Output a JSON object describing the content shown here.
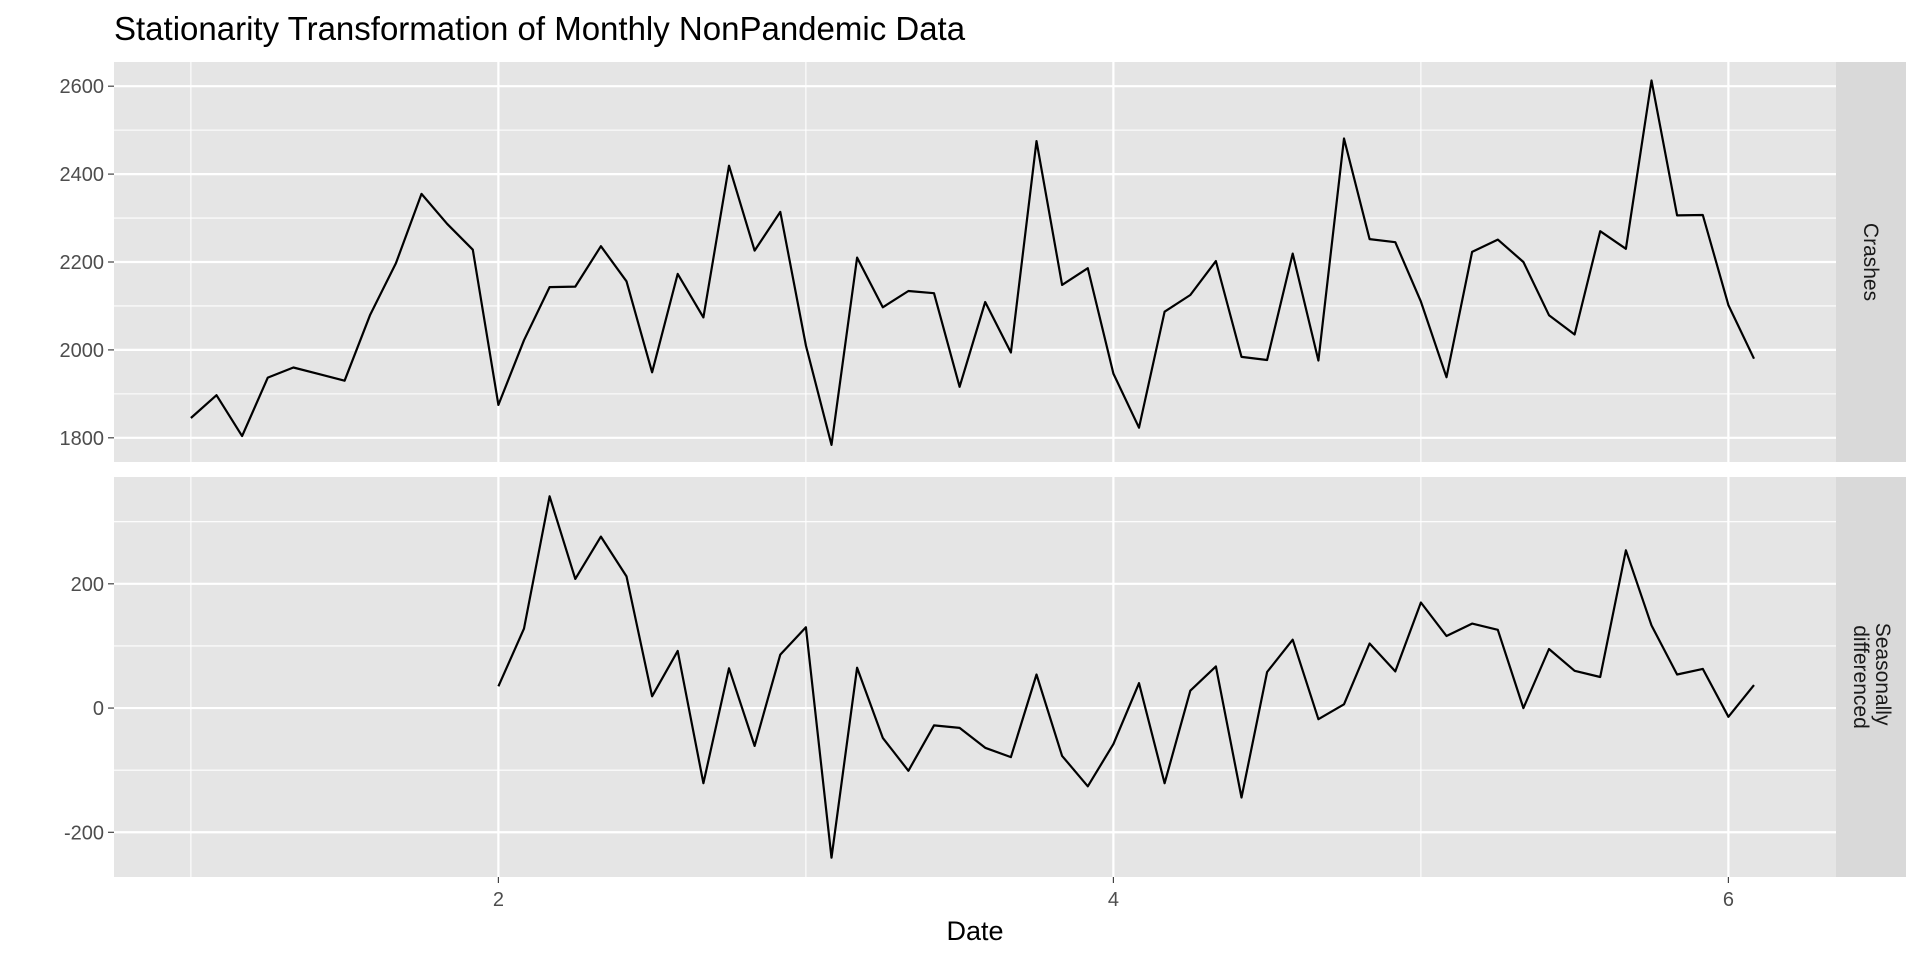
{
  "chart_data": {
    "type": "line",
    "title": "Stationarity Transformation of Monthly NonPandemic Data",
    "xlabel": "Date",
    "x_ticks": [
      "2",
      "4",
      "6"
    ],
    "x_tick_values": [
      2,
      4,
      6
    ],
    "xlim": [
      0.75,
      6.35
    ],
    "grid": true,
    "facets": [
      {
        "name": "Crashes",
        "strip_label_lines": [
          "Crashes"
        ],
        "ylim": [
          1745,
          2655
        ],
        "y_ticks": [
          1800,
          2000,
          2200,
          2400,
          2600
        ],
        "y_tick_labels": [
          "1800",
          "2000",
          "2200",
          "2400",
          "2600"
        ],
        "x": [
          1.0,
          1.0833,
          1.1667,
          1.25,
          1.3333,
          1.4167,
          1.5,
          1.5833,
          1.6667,
          1.75,
          1.8333,
          1.9167,
          2.0,
          2.0833,
          2.1667,
          2.25,
          2.3333,
          2.4167,
          2.5,
          2.5833,
          2.6667,
          2.75,
          2.8333,
          2.9167,
          3.0,
          3.0833,
          3.1667,
          3.25,
          3.3333,
          3.4167,
          3.5,
          3.5833,
          3.6667,
          3.75,
          3.8333,
          3.9167,
          4.0,
          4.0833,
          4.1667,
          4.25,
          4.3333,
          4.4167,
          4.5,
          4.5833,
          4.6667,
          4.75,
          4.8333,
          4.9167,
          5.0,
          5.0833,
          5.1667,
          5.25,
          5.3333,
          5.4167,
          5.5,
          5.5833,
          5.6667,
          5.75,
          5.8333,
          5.9167,
          6.0,
          6.0833
        ],
        "values": [
          1845,
          1897,
          1804,
          1937,
          1960,
          1945,
          1930,
          2080,
          2197,
          2355,
          2287,
          2228,
          1875,
          2022,
          2143,
          2144,
          2236,
          2156,
          1949,
          2173,
          2074,
          2419,
          2226,
          2314,
          2010,
          1784,
          2210,
          2097,
          2134,
          2129,
          1916,
          2109,
          1994,
          2475,
          2148,
          2186,
          1946,
          1823,
          2087,
          2125,
          2202,
          1984,
          1977,
          2219,
          1976,
          2481,
          2252,
          2245,
          2110,
          1938,
          2223,
          2251,
          2200,
          2079,
          2035,
          2270,
          2230,
          2613,
          2306,
          2307,
          2102,
          1980
        ]
      },
      {
        "name": "Seasonally differenced",
        "strip_label_lines": [
          "Seasonally",
          "differenced"
        ],
        "ylim": [
          -272,
          372
        ],
        "y_ticks": [
          -200,
          0,
          200
        ],
        "y_tick_labels": [
          "-200",
          "0",
          "200"
        ],
        "x": [
          2.0,
          2.0833,
          2.1667,
          2.25,
          2.3333,
          2.4167,
          2.5,
          2.5833,
          2.6667,
          2.75,
          2.8333,
          2.9167,
          3.0,
          3.0833,
          3.1667,
          3.25,
          3.3333,
          3.4167,
          3.5,
          3.5833,
          3.6667,
          3.75,
          3.8333,
          3.9167,
          4.0,
          4.0833,
          4.1667,
          4.25,
          4.3333,
          4.4167,
          4.5,
          4.5833,
          4.6667,
          4.75,
          4.8333,
          4.9167,
          5.0,
          5.0833,
          5.1667,
          5.25,
          5.3333,
          5.4167,
          5.5,
          5.5833,
          5.6667,
          5.75,
          5.8333,
          5.9167,
          6.0,
          6.0833
        ],
        "values": [
          35,
          128,
          341,
          208,
          276,
          212,
          19,
          92,
          -121,
          64,
          -61,
          86,
          130,
          -241,
          65,
          -48,
          -101,
          -28,
          -32,
          -64,
          -79,
          54,
          -77,
          -126,
          -58,
          40,
          -121,
          28,
          67,
          -144,
          58,
          110,
          -18,
          6,
          104,
          59,
          170,
          116,
          136,
          126,
          0,
          95,
          60,
          50,
          254,
          133,
          54,
          63,
          -14,
          37
        ]
      }
    ]
  }
}
